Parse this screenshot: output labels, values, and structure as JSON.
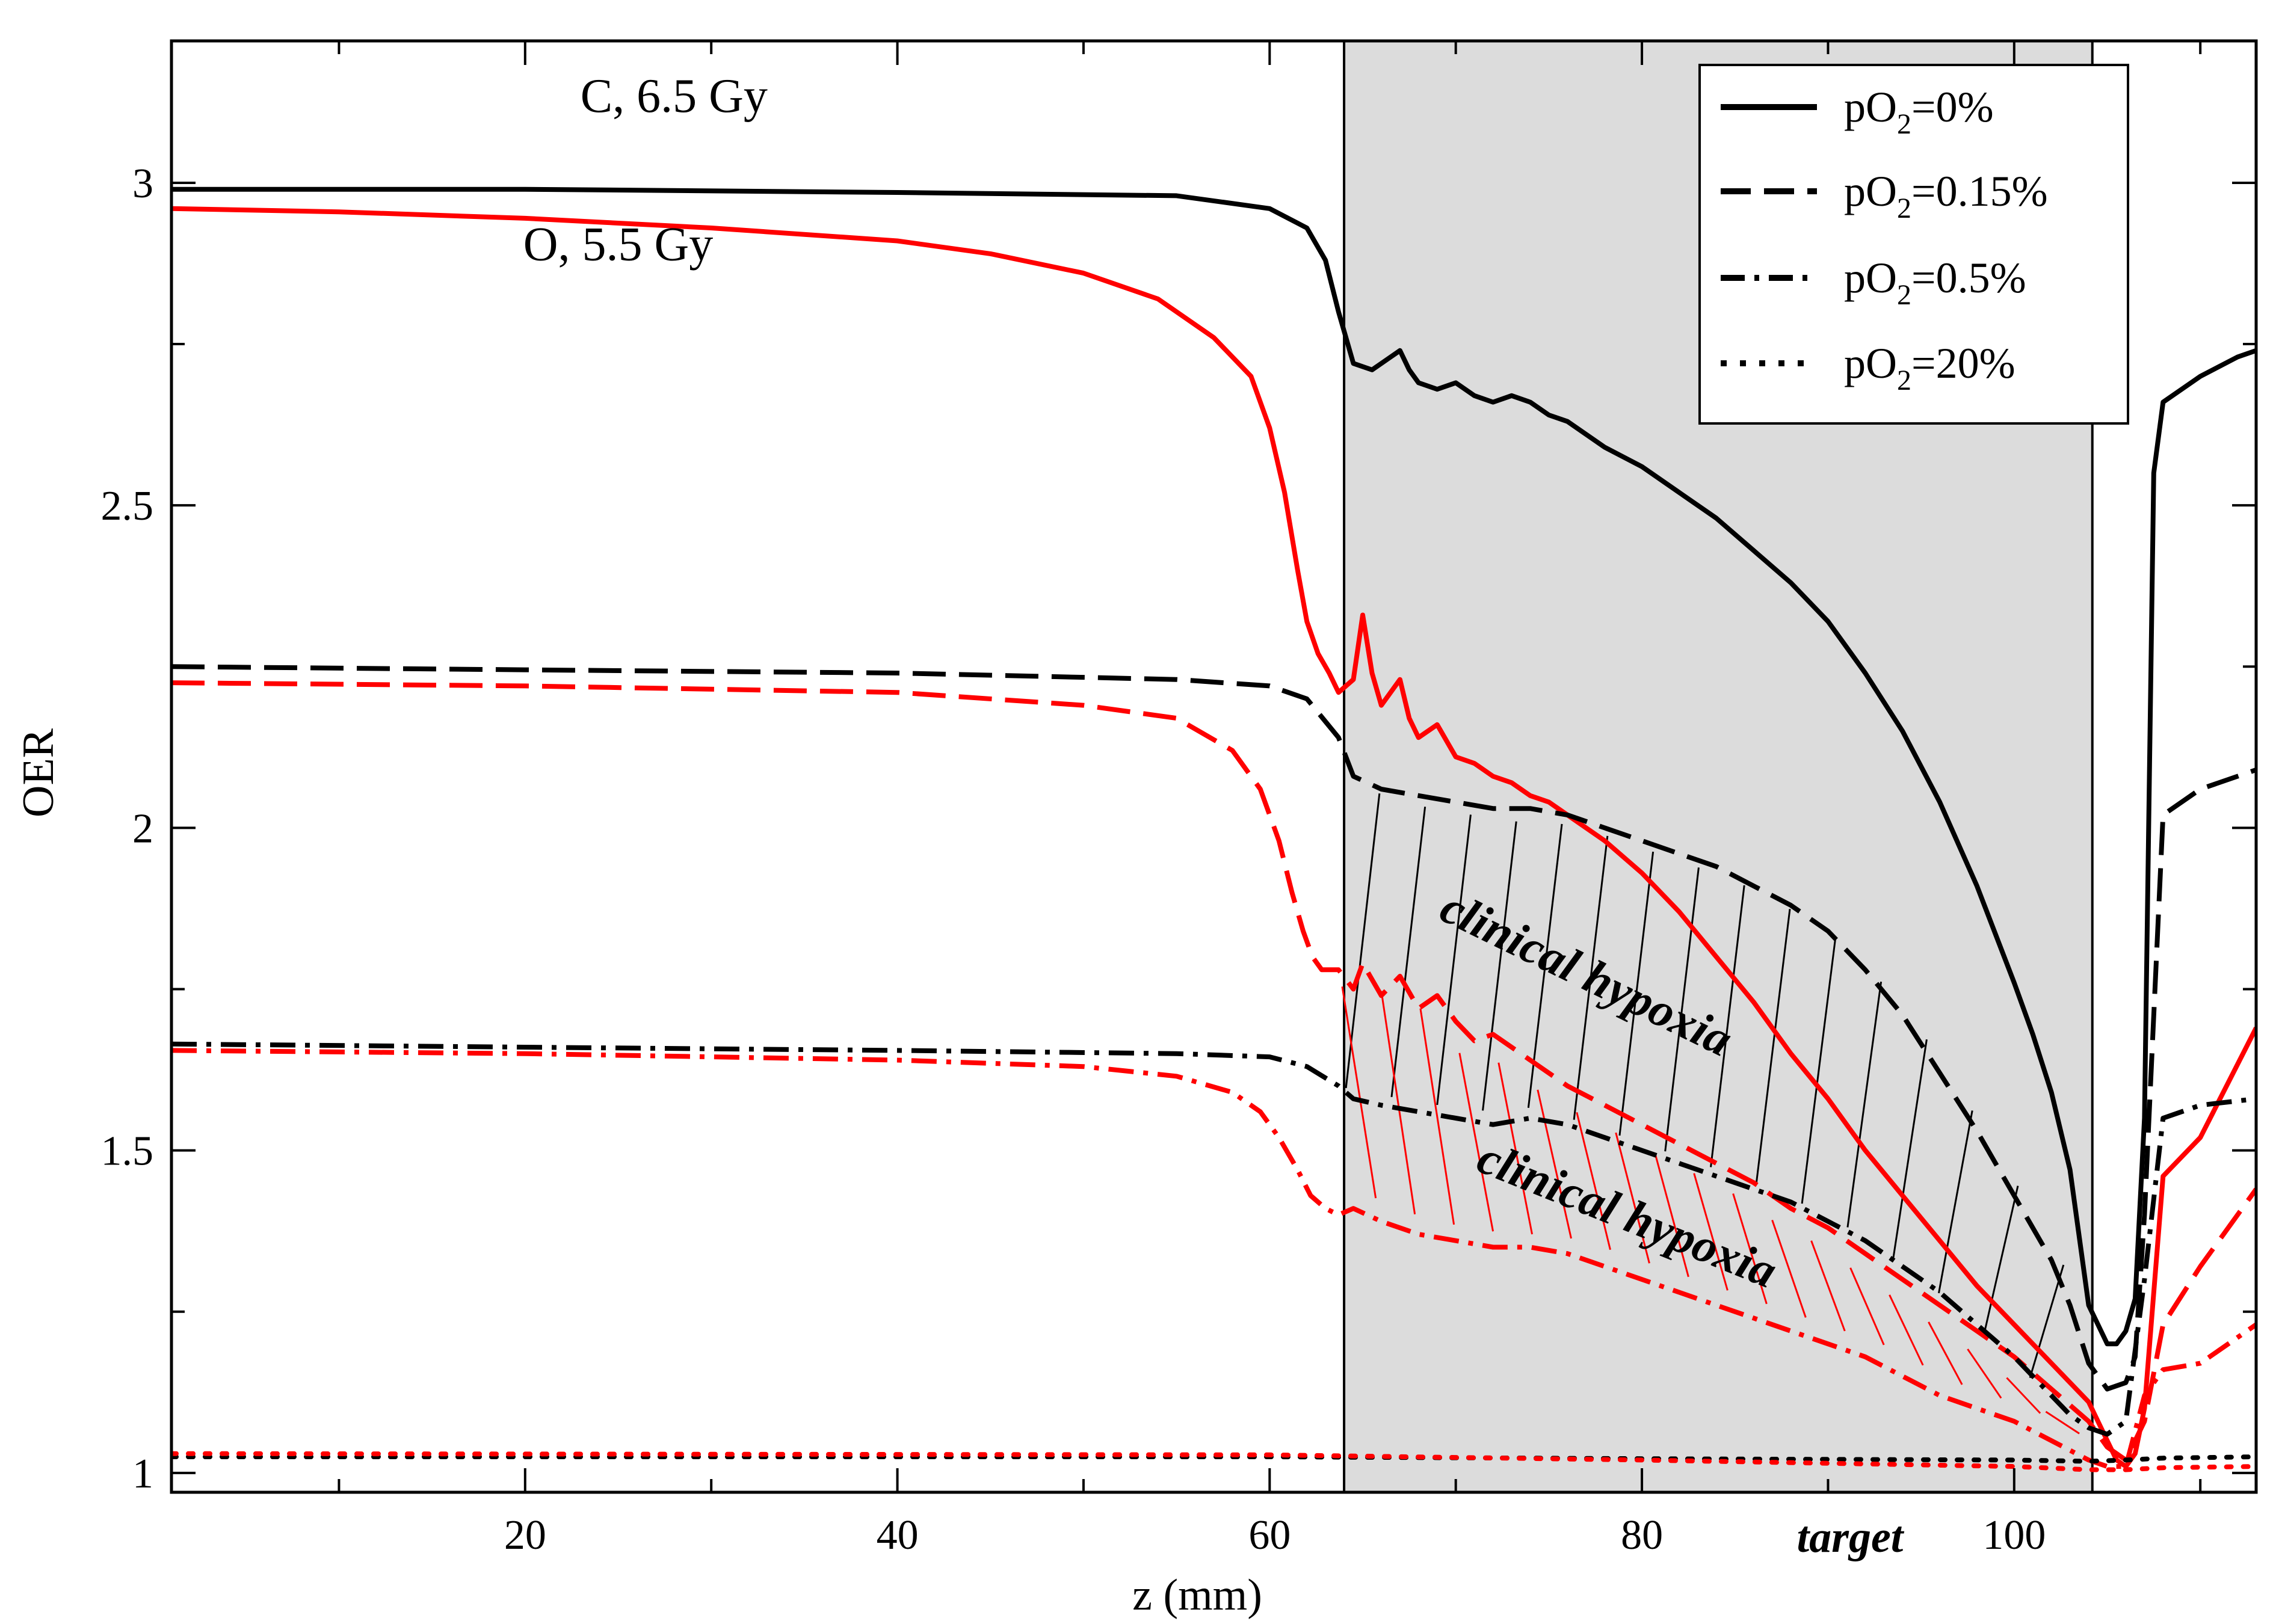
{
  "chart_data": {
    "type": "line",
    "title": "",
    "xlabel": "z (mm)",
    "ylabel": "OER",
    "xlim": [
      1,
      113
    ],
    "ylim": [
      0.97,
      3.22
    ],
    "x_ticks": [
      20,
      40,
      60,
      80,
      100
    ],
    "x_tick_labels": [
      "20",
      "40",
      "60",
      "80",
      "100"
    ],
    "y_ticks": [
      1,
      1.5,
      2,
      2.5,
      3
    ],
    "y_tick_labels": [
      "1",
      "1.5",
      "2",
      "2.5",
      "3"
    ],
    "target_region": {
      "x_start": 64,
      "x_end": 104.2,
      "label": "target"
    },
    "legend": {
      "position": "top-right",
      "entries": [
        {
          "prefix": "pO",
          "sub": "2",
          "suffix": "=0%",
          "dash": "solid"
        },
        {
          "prefix": "pO",
          "sub": "2",
          "suffix": "=0.15%",
          "dash": "dashed"
        },
        {
          "prefix": "pO",
          "sub": "2",
          "suffix": "=0.5%",
          "dash": "dashdot"
        },
        {
          "prefix": "pO",
          "sub": "2",
          "suffix": "=20%",
          "dash": "dotted"
        }
      ]
    },
    "annotations": [
      {
        "text": "C, 6.5 Gy",
        "color": "#000000",
        "x": 28,
        "y": 3.11
      },
      {
        "text": "O, 5.5 Gy",
        "color": "#ff0000",
        "x": 25,
        "y": 2.88
      },
      {
        "text": "clinical hypoxia",
        "color": "#000000",
        "x": 69,
        "y": 1.86,
        "rotation": 26
      },
      {
        "text": "clinical hypoxia",
        "color": "#ff0000",
        "x": 71,
        "y": 1.47,
        "rotation": 22
      }
    ],
    "colors": {
      "carbon": "#000000",
      "oxygen": "#ff0000",
      "target_fill": "#dcdcdc"
    },
    "series": [
      {
        "name": "C pO2=0%",
        "ion": "C",
        "dash": "solid",
        "color": "#000000",
        "x": [
          1,
          20,
          40,
          55,
          60,
          62,
          63,
          63.7,
          64.5,
          65.5,
          66.5,
          67,
          67.5,
          68,
          69,
          70,
          71,
          72,
          73,
          74,
          75,
          76,
          78,
          80,
          82,
          84,
          86,
          88,
          90,
          92,
          94,
          96,
          98,
          100,
          101,
          102,
          103,
          104,
          105,
          105.5,
          106,
          106.5,
          107,
          107.5,
          108,
          110,
          112,
          113
        ],
        "y": [
          2.99,
          2.99,
          2.985,
          2.98,
          2.96,
          2.93,
          2.88,
          2.8,
          2.72,
          2.71,
          2.73,
          2.74,
          2.71,
          2.69,
          2.68,
          2.69,
          2.67,
          2.66,
          2.67,
          2.66,
          2.64,
          2.63,
          2.59,
          2.56,
          2.52,
          2.48,
          2.43,
          2.38,
          2.32,
          2.24,
          2.15,
          2.04,
          1.91,
          1.76,
          1.68,
          1.59,
          1.47,
          1.26,
          1.2,
          1.2,
          1.22,
          1.27,
          1.55,
          2.55,
          2.66,
          2.7,
          2.73,
          2.74
        ]
      },
      {
        "name": "O pO2=0%",
        "ion": "O",
        "dash": "solid",
        "color": "#ff0000",
        "x": [
          1,
          10,
          20,
          30,
          40,
          45,
          50,
          54,
          57,
          59,
          60,
          60.8,
          61.5,
          62,
          62.6,
          63.2,
          63.7,
          64.5,
          65,
          65.5,
          66,
          67,
          67.5,
          68,
          69,
          70,
          71,
          72,
          73,
          74,
          75,
          76,
          78,
          80,
          82,
          84,
          86,
          88,
          90,
          92,
          94,
          96,
          98,
          100,
          102,
          104,
          105,
          105.5,
          106,
          106.5,
          107,
          108,
          110,
          113
        ],
        "y": [
          2.96,
          2.955,
          2.945,
          2.93,
          2.91,
          2.89,
          2.86,
          2.82,
          2.76,
          2.7,
          2.62,
          2.52,
          2.4,
          2.32,
          2.27,
          2.24,
          2.21,
          2.23,
          2.33,
          2.24,
          2.19,
          2.23,
          2.17,
          2.14,
          2.16,
          2.11,
          2.1,
          2.08,
          2.07,
          2.05,
          2.04,
          2.02,
          1.98,
          1.93,
          1.87,
          1.8,
          1.73,
          1.65,
          1.58,
          1.5,
          1.43,
          1.36,
          1.29,
          1.23,
          1.17,
          1.11,
          1.05,
          1.02,
          1.01,
          1.03,
          1.1,
          1.46,
          1.52,
          1.69
        ]
      },
      {
        "name": "C pO2=0.15%",
        "ion": "C",
        "dash": "dashed",
        "color": "#000000",
        "x": [
          1,
          20,
          40,
          55,
          60,
          62,
          63.7,
          64.5,
          66,
          68,
          70,
          72,
          74,
          76,
          78,
          80,
          82,
          84,
          86,
          88,
          90,
          92,
          94,
          96,
          98,
          100,
          102,
          103,
          104,
          105,
          106,
          106.5,
          107,
          108,
          110,
          113
        ],
        "y": [
          2.25,
          2.245,
          2.24,
          2.23,
          2.22,
          2.2,
          2.14,
          2.08,
          2.06,
          2.05,
          2.04,
          2.03,
          2.03,
          2.02,
          2.0,
          1.98,
          1.96,
          1.94,
          1.91,
          1.88,
          1.84,
          1.78,
          1.71,
          1.62,
          1.53,
          1.43,
          1.33,
          1.26,
          1.17,
          1.13,
          1.14,
          1.18,
          1.4,
          2.02,
          2.06,
          2.09
        ]
      },
      {
        "name": "O pO2=0.15%",
        "ion": "O",
        "dash": "dashed",
        "color": "#ff0000",
        "x": [
          1,
          20,
          40,
          50,
          55,
          58,
          59.5,
          60.5,
          61.2,
          61.8,
          62.3,
          62.8,
          63.2,
          63.7,
          64.5,
          65,
          66,
          67,
          68,
          69,
          70,
          71,
          72,
          74,
          76,
          78,
          80,
          82,
          84,
          86,
          88,
          90,
          92,
          94,
          96,
          98,
          100,
          102,
          104,
          105,
          106,
          107,
          108,
          110,
          113
        ],
        "y": [
          2.225,
          2.22,
          2.21,
          2.19,
          2.17,
          2.12,
          2.06,
          1.98,
          1.9,
          1.84,
          1.8,
          1.78,
          1.78,
          1.78,
          1.75,
          1.79,
          1.74,
          1.77,
          1.72,
          1.74,
          1.7,
          1.67,
          1.68,
          1.64,
          1.6,
          1.57,
          1.54,
          1.51,
          1.48,
          1.45,
          1.41,
          1.38,
          1.34,
          1.3,
          1.26,
          1.22,
          1.18,
          1.13,
          1.08,
          1.04,
          1.02,
          1.08,
          1.23,
          1.32,
          1.44
        ]
      },
      {
        "name": "C pO2=0.5%",
        "ion": "C",
        "dash": "dashdot",
        "color": "#000000",
        "x": [
          1,
          20,
          40,
          55,
          60,
          62,
          63.7,
          64.5,
          66,
          68,
          70,
          72,
          74,
          76,
          78,
          80,
          82,
          84,
          86,
          88,
          90,
          92,
          94,
          96,
          98,
          100,
          102,
          103,
          104,
          105,
          106,
          107,
          108,
          110,
          113
        ],
        "y": [
          1.665,
          1.66,
          1.655,
          1.65,
          1.645,
          1.63,
          1.6,
          1.58,
          1.57,
          1.56,
          1.55,
          1.54,
          1.55,
          1.54,
          1.52,
          1.5,
          1.48,
          1.46,
          1.44,
          1.42,
          1.39,
          1.36,
          1.32,
          1.28,
          1.23,
          1.18,
          1.12,
          1.09,
          1.07,
          1.06,
          1.08,
          1.3,
          1.55,
          1.57,
          1.58
        ]
      },
      {
        "name": "O pO2=0.5%",
        "ion": "O",
        "dash": "dashdot",
        "color": "#ff0000",
        "x": [
          1,
          20,
          40,
          50,
          55,
          58,
          59.5,
          60.5,
          61.5,
          62.2,
          63,
          63.7,
          64.5,
          66,
          68,
          70,
          72,
          74,
          76,
          78,
          80,
          82,
          84,
          86,
          88,
          90,
          92,
          94,
          96,
          98,
          100,
          102,
          104,
          105,
          106,
          107,
          108,
          110,
          113
        ],
        "y": [
          1.655,
          1.65,
          1.64,
          1.63,
          1.615,
          1.59,
          1.56,
          1.52,
          1.47,
          1.43,
          1.41,
          1.4,
          1.41,
          1.39,
          1.37,
          1.36,
          1.35,
          1.35,
          1.34,
          1.32,
          1.3,
          1.28,
          1.26,
          1.24,
          1.22,
          1.2,
          1.18,
          1.15,
          1.12,
          1.1,
          1.08,
          1.05,
          1.02,
          1.01,
          1.01,
          1.12,
          1.16,
          1.17,
          1.23
        ]
      },
      {
        "name": "C pO2=20%",
        "ion": "C",
        "dash": "dotted",
        "color": "#000000",
        "x": [
          1,
          60,
          80,
          100,
          104,
          106,
          108,
          113
        ],
        "y": [
          1.025,
          1.025,
          1.022,
          1.02,
          1.018,
          1.02,
          1.023,
          1.025
        ]
      },
      {
        "name": "O pO2=20%",
        "ion": "O",
        "dash": "dotted",
        "color": "#ff0000",
        "x": [
          1,
          60,
          80,
          100,
          104,
          106,
          108,
          113
        ],
        "y": [
          1.03,
          1.028,
          1.02,
          1.01,
          1.005,
          1.005,
          1.008,
          1.01
        ]
      }
    ]
  }
}
